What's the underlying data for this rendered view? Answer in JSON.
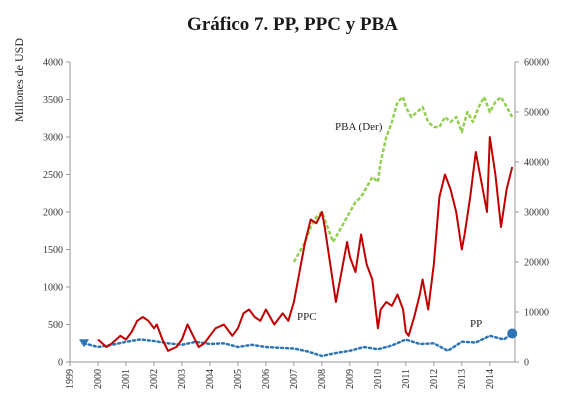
{
  "chart_data": {
    "type": "line",
    "title": "Gráfico 7. PP, PPC y PBA",
    "ylabel": "Millones de USD",
    "ylim": [
      0,
      4000
    ],
    "y2lim": [
      0,
      60000
    ],
    "y_ticks": [
      "0",
      "500",
      "1000",
      "1500",
      "2000",
      "2500",
      "3000",
      "3500",
      "4000"
    ],
    "y2_ticks": [
      "0",
      "10000",
      "20000",
      "30000",
      "40000",
      "50000",
      "60000"
    ],
    "x_ticks": [
      "1999",
      "2000",
      "2001",
      "2002",
      "2003",
      "2004",
      "2005",
      "2006",
      "2007",
      "2008",
      "2009",
      "2010",
      "2011",
      "2012",
      "2013",
      "2014"
    ],
    "xlim": [
      1999,
      2014.9
    ],
    "colors": {
      "PPC": "#c00000",
      "PBA": "#92d050",
      "PP": "#2e75b6",
      "axis": "#999999"
    },
    "annotations": [
      "PBA (Der)",
      "PPC",
      "PP"
    ],
    "series": [
      {
        "name": "PPC",
        "axis": "left",
        "style": "solid",
        "x": [
          2000.0,
          2000.3,
          2000.5,
          2000.8,
          2001.0,
          2001.2,
          2001.4,
          2001.6,
          2001.8,
          2002.0,
          2002.1,
          2002.3,
          2002.5,
          2002.8,
          2003.0,
          2003.2,
          2003.4,
          2003.6,
          2003.8,
          2004.0,
          2004.2,
          2004.5,
          2004.8,
          2005.0,
          2005.2,
          2005.4,
          2005.6,
          2005.8,
          2006.0,
          2006.3,
          2006.6,
          2006.8,
          2007.0,
          2007.2,
          2007.4,
          2007.6,
          2007.8,
          2008.0,
          2008.1,
          2008.3,
          2008.5,
          2008.7,
          2008.9,
          2009.0,
          2009.2,
          2009.4,
          2009.6,
          2009.8,
          2010.0,
          2010.1,
          2010.3,
          2010.5,
          2010.7,
          2010.9,
          2011.0,
          2011.1,
          2011.3,
          2011.5,
          2011.6,
          2011.8,
          2012.0,
          2012.2,
          2012.4,
          2012.6,
          2012.8,
          2013.0,
          2013.1,
          2013.3,
          2013.5,
          2013.7,
          2013.9,
          2014.0,
          2014.2,
          2014.4,
          2014.6,
          2014.8
        ],
        "values": [
          300,
          200,
          250,
          350,
          300,
          400,
          550,
          600,
          550,
          450,
          500,
          300,
          150,
          200,
          300,
          500,
          350,
          200,
          250,
          350,
          450,
          500,
          350,
          450,
          650,
          700,
          600,
          550,
          700,
          500,
          650,
          550,
          800,
          1200,
          1600,
          1900,
          1850,
          2000,
          1800,
          1300,
          800,
          1200,
          1600,
          1400,
          1200,
          1700,
          1300,
          1100,
          450,
          700,
          800,
          750,
          900,
          700,
          400,
          350,
          600,
          900,
          1100,
          700,
          1300,
          2200,
          2500,
          2300,
          2000,
          1500,
          1700,
          2200,
          2800,
          2400,
          2000,
          3000,
          2500,
          1800,
          2300,
          2600
        ]
      },
      {
        "name": "PBA",
        "axis": "right",
        "style": "dashed",
        "x": [
          2007.0,
          2007.2,
          2007.4,
          2007.6,
          2007.8,
          2008.0,
          2008.2,
          2008.4,
          2008.6,
          2008.8,
          2009.0,
          2009.2,
          2009.4,
          2009.6,
          2009.8,
          2010.0,
          2010.1,
          2010.3,
          2010.5,
          2010.7,
          2010.9,
          2011.0,
          2011.2,
          2011.4,
          2011.6,
          2011.8,
          2012.0,
          2012.2,
          2012.4,
          2012.6,
          2012.8,
          2013.0,
          2013.2,
          2013.4,
          2013.6,
          2013.8,
          2014.0,
          2014.2,
          2014.4,
          2014.6,
          2014.8
        ],
        "values": [
          20000,
          22000,
          24000,
          27000,
          29000,
          30000,
          27000,
          24000,
          26000,
          28000,
          30000,
          32000,
          33000,
          35000,
          37000,
          36000,
          40000,
          45000,
          48000,
          52000,
          53000,
          51000,
          49000,
          50000,
          51000,
          48000,
          47000,
          47000,
          49000,
          48000,
          49000,
          46000,
          50000,
          48000,
          51000,
          53000,
          50000,
          52000,
          53000,
          51000,
          49000
        ]
      },
      {
        "name": "PP",
        "axis": "left",
        "style": "dotted",
        "x": [
          1999.5,
          2000.0,
          2000.5,
          2001.0,
          2001.5,
          2002.0,
          2002.5,
          2003.0,
          2003.5,
          2004.0,
          2004.5,
          2005.0,
          2005.5,
          2006.0,
          2006.5,
          2007.0,
          2007.5,
          2008.0,
          2008.5,
          2009.0,
          2009.5,
          2010.0,
          2010.5,
          2011.0,
          2011.5,
          2012.0,
          2012.5,
          2013.0,
          2013.5,
          2014.0,
          2014.5,
          2014.8
        ],
        "values": [
          250,
          200,
          230,
          270,
          300,
          280,
          250,
          230,
          270,
          240,
          250,
          200,
          230,
          200,
          190,
          180,
          140,
          80,
          120,
          150,
          200,
          170,
          220,
          300,
          240,
          250,
          150,
          270,
          260,
          350,
          300,
          380
        ]
      }
    ]
  }
}
